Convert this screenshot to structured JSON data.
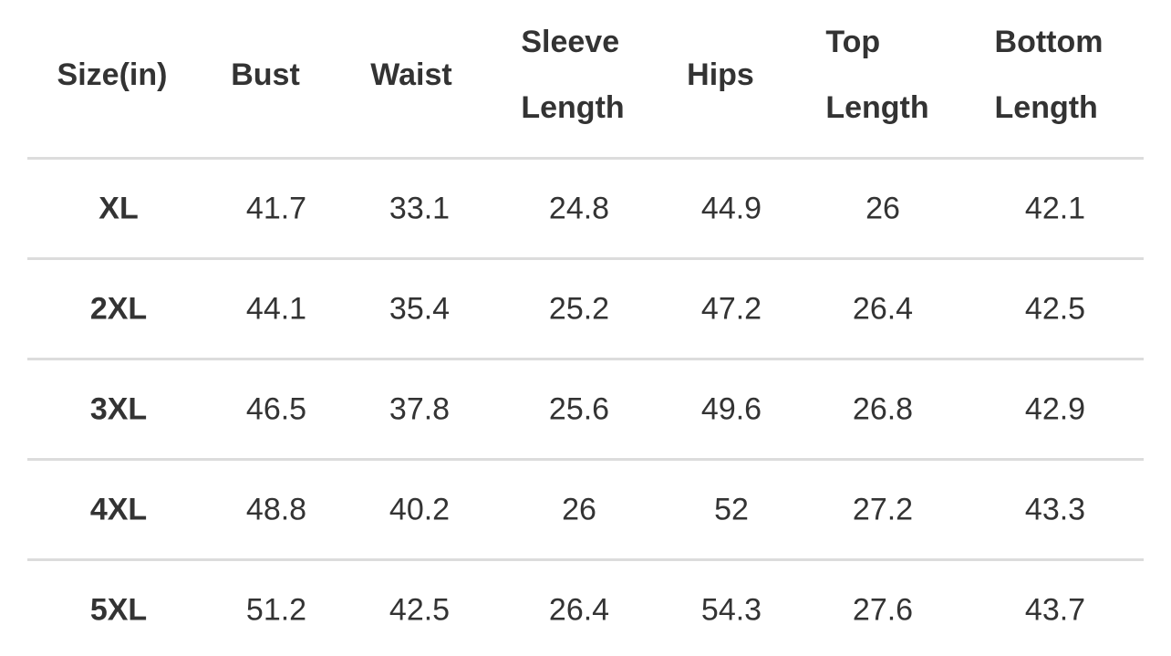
{
  "table": {
    "header": [
      "Size(in)",
      "Bust",
      "Waist",
      "Sleeve Length",
      "Hips",
      "Top Length",
      "Bottom Length"
    ],
    "rows": [
      [
        "XL",
        41.7,
        33.1,
        24.8,
        44.9,
        26,
        42.1
      ],
      [
        "2XL",
        44.1,
        35.4,
        25.2,
        47.2,
        26.4,
        42.5
      ],
      [
        "3XL",
        46.5,
        37.8,
        25.6,
        49.6,
        26.8,
        42.9
      ],
      [
        "4XL",
        48.8,
        40.2,
        26,
        52,
        27.2,
        43.3
      ],
      [
        "5XL",
        51.2,
        42.5,
        26.4,
        54.3,
        27.6,
        43.7
      ]
    ]
  }
}
